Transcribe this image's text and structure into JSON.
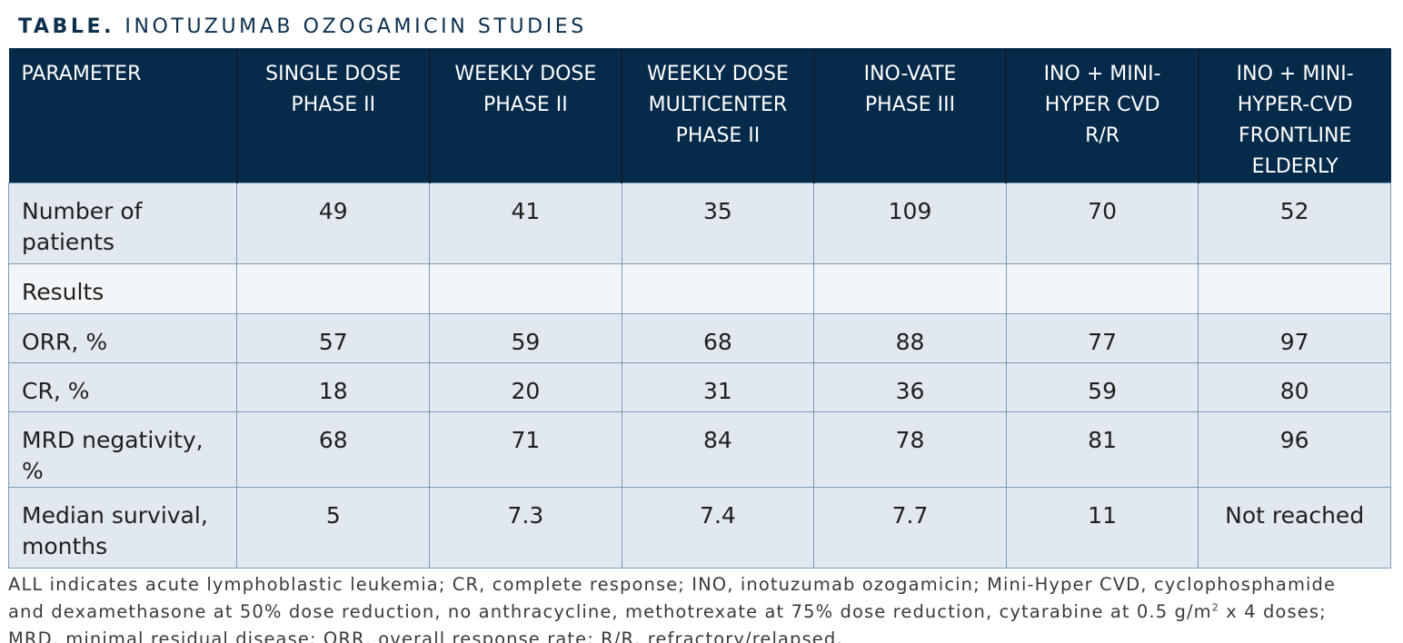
{
  "title": {
    "lead": "TABLE.",
    "rest": "INOTUZUMAB OZOGAMICIN STUDIES"
  },
  "table": {
    "headers": [
      [
        "PARAMETER"
      ],
      [
        "SINGLE DOSE",
        "PHASE II"
      ],
      [
        "WEEKLY DOSE",
        "PHASE II"
      ],
      [
        "WEEKLY DOSE",
        "MULTICENTER",
        "PHASE II"
      ],
      [
        "INO-VATE",
        "PHASE III"
      ],
      [
        "INO + MINI-",
        "HYPER CVD",
        "R/R"
      ],
      [
        "INO + MINI-",
        "HYPER-CVD",
        "FRONTLINE",
        "ELDERLY"
      ]
    ],
    "rows": [
      {
        "label": [
          "Number of",
          "patients"
        ],
        "values": [
          "49",
          "41",
          "35",
          "109",
          "70",
          "52"
        ]
      },
      {
        "label": [
          "Results"
        ],
        "values": [
          "",
          "",
          "",
          "",
          "",
          ""
        ]
      },
      {
        "label": [
          "ORR, %"
        ],
        "values": [
          "57",
          "59",
          "68",
          "88",
          "77",
          "97"
        ]
      },
      {
        "label": [
          "CR, %"
        ],
        "values": [
          "18",
          "20",
          "31",
          "36",
          "59",
          "80"
        ]
      },
      {
        "label": [
          "MRD negativity, %"
        ],
        "values": [
          "68",
          "71",
          "84",
          "78",
          "81",
          "96"
        ]
      },
      {
        "label": [
          "Median survival,",
          "months"
        ],
        "values": [
          "5",
          "7.3",
          "7.4",
          "7.7",
          "11",
          "Not reached"
        ]
      }
    ]
  },
  "footnote": {
    "line1": "ALL indicates acute lymphoblastic leukemia; CR, complete response; INO, inotuzumab ozogamicin; Mini-Hyper CVD, cyclophosphamide",
    "line2_pre": "and dexamethasone at 50% dose reduction, no anthracycline, methotrexate at 75% dose reduction, cytarabine at 0.5 g/m",
    "line2_sup": "2",
    "line2_post": " x 4 doses;",
    "line3": "MRD, minimal residual disease; ORR, overall response rate; R/R, refractory/relapsed."
  }
}
